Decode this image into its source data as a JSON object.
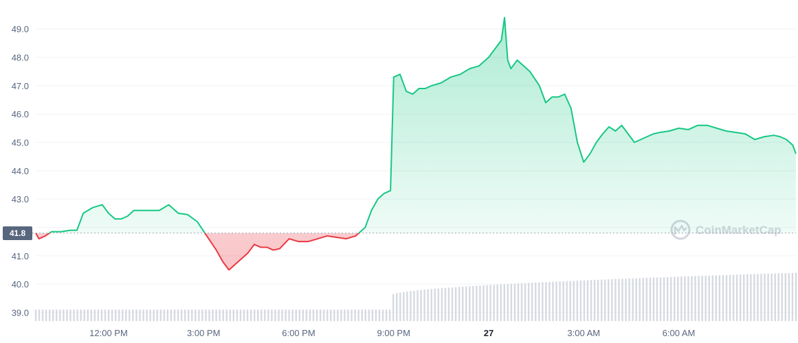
{
  "chart_data": {
    "type": "area",
    "reference_price": 41.8,
    "reference_label": "41.8",
    "ylim": [
      38.8,
      49.6
    ],
    "yticks": [
      {
        "value": 49.0,
        "label": "49.0"
      },
      {
        "value": 48.0,
        "label": "48.0"
      },
      {
        "value": 47.0,
        "label": "47.0"
      },
      {
        "value": 46.0,
        "label": "46.0"
      },
      {
        "value": 45.0,
        "label": "45.0"
      },
      {
        "value": 44.0,
        "label": "44.0"
      },
      {
        "value": 43.0,
        "label": "43.0"
      },
      {
        "value": 41.0,
        "label": "41.0"
      },
      {
        "value": 40.0,
        "label": "40.0"
      },
      {
        "value": 39.0,
        "label": "39.0"
      }
    ],
    "xlim": [
      9.7,
      33.7
    ],
    "xticks": [
      {
        "hour": 12,
        "label": "12:00 PM",
        "bold": false
      },
      {
        "hour": 15,
        "label": "3:00 PM",
        "bold": false
      },
      {
        "hour": 18,
        "label": "6:00 PM",
        "bold": false
      },
      {
        "hour": 21,
        "label": "9:00 PM",
        "bold": false
      },
      {
        "hour": 24,
        "label": "27",
        "bold": true
      },
      {
        "hour": 27,
        "label": "3:00 AM",
        "bold": false
      },
      {
        "hour": 30,
        "label": "6:00 AM",
        "bold": false
      }
    ],
    "series": [
      {
        "x": [
          9.7,
          9.8,
          10.0,
          10.2,
          10.5,
          10.8,
          11.0,
          11.2,
          11.5,
          11.8,
          12.0,
          12.2,
          12.4,
          12.6,
          12.8,
          13.0,
          13.3,
          13.6,
          13.9,
          14.2,
          14.5,
          14.8,
          15.1,
          15.4,
          15.6,
          15.8,
          16.0,
          16.2,
          16.4,
          16.6,
          16.8,
          17.0,
          17.2,
          17.4,
          17.7,
          18.0,
          18.3,
          18.6,
          18.9,
          19.2,
          19.5,
          19.8,
          20.1,
          20.3,
          20.5,
          20.7,
          20.9,
          21.0,
          21.2,
          21.4,
          21.6,
          21.8,
          22.0,
          22.2,
          22.5,
          22.8,
          23.1,
          23.4,
          23.7,
          24.0,
          24.2,
          24.4,
          24.5,
          24.6,
          24.7,
          24.9,
          25.1,
          25.3,
          25.6,
          25.8,
          26.0,
          26.2,
          26.4,
          26.6,
          26.8,
          27.0,
          27.2,
          27.4,
          27.6,
          27.8,
          28.0,
          28.2,
          28.4,
          28.6,
          28.8,
          29.0,
          29.2,
          29.4,
          29.7,
          30.0,
          30.3,
          30.6,
          30.9,
          31.2,
          31.5,
          31.8,
          32.1,
          32.4,
          32.7,
          33.0,
          33.2,
          33.4,
          33.6,
          33.7
        ],
        "values": [
          41.8,
          41.6,
          41.7,
          41.85,
          41.85,
          41.9,
          41.9,
          42.5,
          42.7,
          42.8,
          42.5,
          42.3,
          42.3,
          42.4,
          42.6,
          42.6,
          42.6,
          42.6,
          42.8,
          42.5,
          42.45,
          42.2,
          41.7,
          41.2,
          40.8,
          40.5,
          40.7,
          40.9,
          41.1,
          41.4,
          41.3,
          41.3,
          41.2,
          41.25,
          41.6,
          41.5,
          41.5,
          41.6,
          41.7,
          41.65,
          41.6,
          41.7,
          42.0,
          42.6,
          43.0,
          43.2,
          43.3,
          47.3,
          47.4,
          46.8,
          46.7,
          46.9,
          46.9,
          47.0,
          47.1,
          47.3,
          47.4,
          47.6,
          47.7,
          48.0,
          48.3,
          48.6,
          49.4,
          47.9,
          47.6,
          47.9,
          47.7,
          47.5,
          47.0,
          46.4,
          46.6,
          46.6,
          46.7,
          46.2,
          45.0,
          44.3,
          44.6,
          45.0,
          45.3,
          45.55,
          45.4,
          45.6,
          45.3,
          45.0,
          45.1,
          45.2,
          45.3,
          45.35,
          45.4,
          45.5,
          45.45,
          45.6,
          45.6,
          45.5,
          45.4,
          45.35,
          45.3,
          45.1,
          45.2,
          45.25,
          45.2,
          45.1,
          44.9,
          44.6
        ]
      }
    ],
    "volume": {
      "x_start": 9.7,
      "x_end": 33.7,
      "count": 220,
      "level_a": 39.1,
      "level_b": 39.6,
      "level_c": 40.4,
      "step_hour": 20.9
    }
  },
  "watermark": {
    "text": "CoinMarketCap",
    "icon": "coinmarketcap-logo-icon"
  },
  "colors": {
    "up": "#16c784",
    "down": "#ea3943",
    "grid": "#eff2f5",
    "tick": "#58667e",
    "price_tag": "#58667e",
    "volume_bar": "#d6d9e0"
  }
}
